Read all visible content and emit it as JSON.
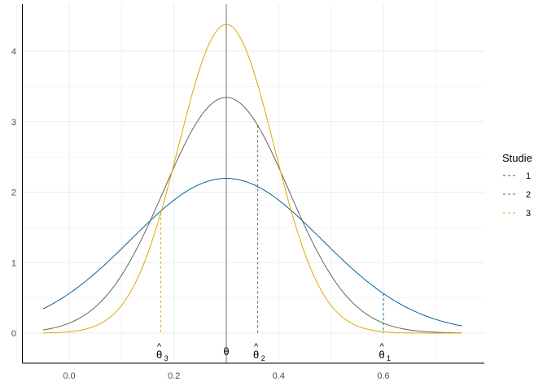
{
  "chart_data": {
    "type": "line",
    "title": "",
    "xlabel": "",
    "ylabel": "",
    "xlim": [
      -0.05,
      0.75
    ],
    "ylim": [
      0,
      4.4
    ],
    "x_ticks": [
      0.0,
      0.2,
      0.4,
      0.6
    ],
    "x_tick_labels": [
      "0.0",
      "0.2",
      "0.4",
      "0.6"
    ],
    "y_ticks": [
      0,
      1,
      2,
      3,
      4
    ],
    "y_tick_labels": [
      "0",
      "1",
      "2",
      "3",
      "4"
    ],
    "grid": true,
    "legend": {
      "title": "Studie",
      "placement": "right"
    },
    "distribution": "normal density",
    "theta": {
      "value": 0.3,
      "label": "θ"
    },
    "series": [
      {
        "name": "1",
        "color": "#0066a0",
        "mean": 0.3,
        "sd": 0.1817,
        "estimate": 0.6,
        "estimate_label": "θ̂1",
        "hat": "^",
        "base": "θ",
        "sub": "1"
      },
      {
        "name": "2",
        "color": "#66655a",
        "mean": 0.3,
        "sd": 0.1193,
        "estimate": 0.36,
        "estimate_label": "θ̂2",
        "hat": "^",
        "base": "θ",
        "sub": "2"
      },
      {
        "name": "3",
        "color": "#e0a800",
        "mean": 0.3,
        "sd": 0.0911,
        "estimate": 0.175,
        "estimate_label": "θ̂3",
        "hat": "^",
        "base": "θ",
        "sub": "3"
      }
    ],
    "colors": {
      "grid": "#ebebeb",
      "axis": "#000000",
      "theta_line": "#707070"
    }
  }
}
